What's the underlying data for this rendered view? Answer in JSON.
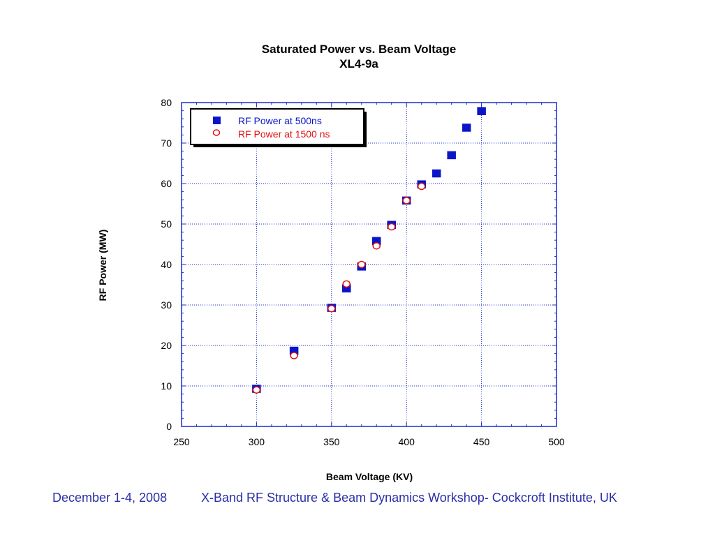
{
  "chart_data": {
    "type": "scatter",
    "title": "Saturated Power vs. Beam Voltage",
    "subtitle": "XL4-9a",
    "xlabel": "Beam Voltage (KV)",
    "ylabel": "RF Power (MW)",
    "xlim": [
      250,
      500
    ],
    "ylim": [
      0,
      80
    ],
    "x_ticks": [
      250,
      300,
      350,
      400,
      450,
      500
    ],
    "y_ticks": [
      0,
      10,
      20,
      30,
      40,
      50,
      60,
      70,
      80
    ],
    "grid": true,
    "legend_position": "top-left",
    "series": [
      {
        "name": "RF Power at 500ns",
        "marker": "filled-square",
        "color": "#0a14c8",
        "x": [
          300,
          325,
          350,
          360,
          370,
          380,
          390,
          400,
          410,
          420,
          430,
          440,
          450
        ],
        "y": [
          9.3,
          18.7,
          29.3,
          34.1,
          39.5,
          45.8,
          49.8,
          55.8,
          59.8,
          62.5,
          67.0,
          73.8,
          77.9
        ]
      },
      {
        "name": "RF Power at 1500 ns",
        "marker": "open-circle",
        "color": "#e01010",
        "x": [
          300,
          325,
          350,
          360,
          370,
          380,
          390,
          400,
          410
        ],
        "y": [
          9.0,
          17.5,
          29.1,
          35.2,
          40.0,
          44.6,
          49.3,
          55.8,
          59.3
        ]
      }
    ]
  },
  "colors": {
    "axis": "#1a2bd0",
    "grid": "#1a2bd0",
    "footer_text": "#2b2fa8"
  },
  "footer": {
    "date": "December 1-4, 2008",
    "event": "X-Band RF Structure & Beam Dynamics Workshop- Cockcroft Institute, UK"
  }
}
